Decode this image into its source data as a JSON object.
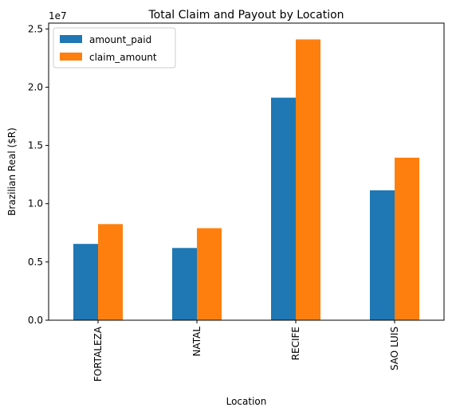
{
  "chart_data": {
    "type": "bar",
    "title": "Total Claim and Payout by Location",
    "xlabel": "Location",
    "ylabel": "Brazilian Real ($R)",
    "y_offset_label": "1e7",
    "categories": [
      "FORTALEZA",
      "NATAL",
      "RECIFE",
      "SAO LUIS"
    ],
    "series": [
      {
        "name": "amount_paid",
        "color": "#1f77b4",
        "values": [
          6550000,
          6200000,
          19100000,
          11150000
        ]
      },
      {
        "name": "claim_amount",
        "color": "#ff7f0e",
        "values": [
          8250000,
          7900000,
          24100000,
          13950000
        ]
      }
    ],
    "ylim": [
      0,
      25500000
    ],
    "yticks": [
      0,
      5000000,
      10000000,
      15000000,
      20000000,
      25000000
    ],
    "ytick_labels": [
      "0.0",
      "0.5",
      "1.0",
      "1.5",
      "2.0",
      "2.5"
    ],
    "grid": false,
    "legend_position": "top-left"
  }
}
